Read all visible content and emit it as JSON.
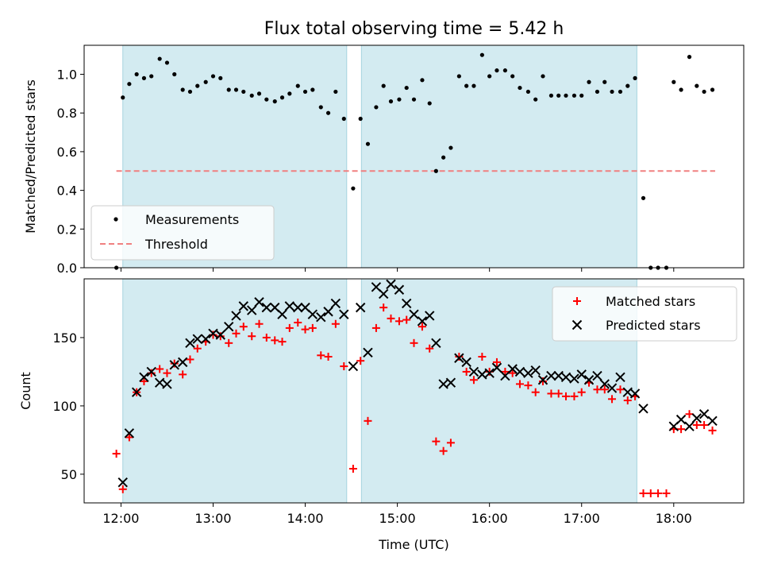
{
  "chart_data": [
    {
      "type": "scatter",
      "title": "Flux total observing time = 5.42 h",
      "xlabel": "",
      "ylabel": "Matched/Predicted stars",
      "xlim": [
        11.6,
        18.76
      ],
      "ylim": [
        0.0,
        1.15
      ],
      "yticks": [
        0.0,
        0.2,
        0.4,
        0.6,
        0.8,
        1.0
      ],
      "ytick_labels": [
        "0.0",
        "0.2",
        "0.4",
        "0.6",
        "0.8",
        "1.0"
      ],
      "xticks": [
        12,
        13,
        14,
        15,
        16,
        17,
        18
      ],
      "legend_position": "lower-left",
      "shaded_intervals": [
        [
          12.02,
          14.45
        ],
        [
          14.61,
          17.6
        ]
      ],
      "colors": {
        "shade": "#d3ebf1",
        "shade_edge": "#a6d4df",
        "threshold": "#f08080",
        "points": "#000000"
      },
      "series": [
        {
          "name": "Measurements",
          "marker": "dot",
          "x": [
            11.95,
            12.02,
            12.09,
            12.17,
            12.25,
            12.33,
            12.42,
            12.5,
            12.58,
            12.67,
            12.75,
            12.83,
            12.92,
            13.0,
            13.08,
            13.17,
            13.25,
            13.33,
            13.42,
            13.5,
            13.58,
            13.67,
            13.75,
            13.83,
            13.92,
            14.0,
            14.08,
            14.17,
            14.25,
            14.33,
            14.42,
            14.52,
            14.6,
            14.68,
            14.77,
            14.85,
            14.93,
            15.02,
            15.1,
            15.18,
            15.27,
            15.35,
            15.42,
            15.5,
            15.58,
            15.67,
            15.75,
            15.83,
            15.92,
            16.0,
            16.08,
            16.17,
            16.25,
            16.33,
            16.42,
            16.5,
            16.58,
            16.67,
            16.75,
            16.83,
            16.92,
            17.0,
            17.08,
            17.17,
            17.25,
            17.33,
            17.42,
            17.5,
            17.58,
            17.67,
            17.75,
            17.83,
            17.92,
            18.0,
            18.08,
            18.17,
            18.25,
            18.33,
            18.42
          ],
          "values": [
            0.0,
            0.88,
            0.95,
            1.0,
            0.98,
            0.99,
            1.08,
            1.06,
            1.0,
            0.92,
            0.91,
            0.94,
            0.96,
            0.99,
            0.98,
            0.92,
            0.92,
            0.91,
            0.89,
            0.9,
            0.87,
            0.86,
            0.88,
            0.9,
            0.94,
            0.91,
            0.92,
            0.83,
            0.8,
            0.91,
            0.77,
            0.41,
            0.77,
            0.64,
            0.83,
            0.94,
            0.86,
            0.87,
            0.93,
            0.87,
            0.97,
            0.85,
            0.5,
            0.57,
            0.62,
            0.99,
            0.94,
            0.94,
            1.1,
            0.99,
            1.02,
            1.02,
            0.99,
            0.93,
            0.91,
            0.87,
            0.99,
            0.89,
            0.89,
            0.89,
            0.89,
            0.89,
            0.96,
            0.91,
            0.96,
            0.91,
            0.91,
            0.94,
            0.98,
            0.36,
            0.0,
            0.0,
            0.0,
            0.96,
            0.92,
            1.09,
            0.94,
            0.91,
            0.92
          ]
        },
        {
          "name": "Threshold",
          "marker": "dashed-line",
          "x": [
            11.95,
            18.45
          ],
          "values": [
            0.5,
            0.5
          ]
        }
      ]
    },
    {
      "type": "scatter",
      "title": "",
      "xlabel": "Time (UTC)",
      "ylabel": "Count",
      "xlim": [
        11.6,
        18.76
      ],
      "ylim": [
        29,
        193
      ],
      "yticks": [
        50,
        100,
        150
      ],
      "ytick_labels": [
        "50",
        "100",
        "150"
      ],
      "xticks": [
        12,
        13,
        14,
        15,
        16,
        17,
        18
      ],
      "xtick_labels": [
        "12:00",
        "13:00",
        "14:00",
        "15:00",
        "16:00",
        "17:00",
        "18:00"
      ],
      "legend_position": "top-right",
      "shaded_intervals": [
        [
          12.02,
          14.45
        ],
        [
          14.61,
          17.6
        ]
      ],
      "colors": {
        "shade": "#d3ebf1",
        "shade_edge": "#a6d4df",
        "matched": "#ff0000",
        "predicted": "#000000"
      },
      "series": [
        {
          "name": "Matched stars",
          "marker": "plus",
          "x": [
            11.95,
            12.02,
            12.09,
            12.17,
            12.25,
            12.33,
            12.42,
            12.5,
            12.58,
            12.67,
            12.75,
            12.83,
            12.92,
            13.0,
            13.08,
            13.17,
            13.25,
            13.33,
            13.42,
            13.5,
            13.58,
            13.67,
            13.75,
            13.83,
            13.92,
            14.0,
            14.08,
            14.17,
            14.25,
            14.33,
            14.42,
            14.52,
            14.6,
            14.68,
            14.77,
            14.85,
            14.93,
            15.02,
            15.1,
            15.18,
            15.27,
            15.35,
            15.42,
            15.5,
            15.58,
            15.67,
            15.75,
            15.83,
            15.92,
            16.0,
            16.08,
            16.17,
            16.25,
            16.33,
            16.42,
            16.5,
            16.58,
            16.67,
            16.75,
            16.83,
            16.92,
            17.0,
            17.08,
            17.17,
            17.25,
            17.33,
            17.42,
            17.5,
            17.58,
            17.67,
            17.75,
            17.83,
            17.92,
            18.0,
            18.08,
            18.17,
            18.25,
            18.33,
            18.42
          ],
          "values": [
            65,
            39,
            77,
            110,
            118,
            124,
            127,
            124,
            131,
            123,
            134,
            142,
            147,
            152,
            151,
            146,
            153,
            158,
            151,
            160,
            150,
            148,
            147,
            157,
            161,
            156,
            157,
            137,
            136,
            160,
            129,
            54,
            133,
            89,
            157,
            172,
            164,
            162,
            163,
            146,
            158,
            142,
            74,
            67,
            73,
            136,
            125,
            119,
            136,
            125,
            132,
            125,
            124,
            116,
            115,
            110,
            118,
            109,
            109,
            107,
            107,
            110,
            117,
            112,
            112,
            105,
            112,
            104,
            107,
            36,
            36,
            36,
            36,
            83,
            83,
            94,
            86,
            86,
            82
          ]
        },
        {
          "name": "Predicted stars",
          "marker": "x",
          "x": [
            12.02,
            12.09,
            12.17,
            12.25,
            12.33,
            12.42,
            12.5,
            12.58,
            12.67,
            12.75,
            12.83,
            12.92,
            13.0,
            13.08,
            13.17,
            13.25,
            13.33,
            13.42,
            13.5,
            13.58,
            13.67,
            13.75,
            13.83,
            13.92,
            14.0,
            14.08,
            14.17,
            14.25,
            14.33,
            14.42,
            14.52,
            14.6,
            14.68,
            14.77,
            14.85,
            14.93,
            15.02,
            15.1,
            15.18,
            15.27,
            15.35,
            15.42,
            15.5,
            15.58,
            15.67,
            15.75,
            15.83,
            15.92,
            16.0,
            16.08,
            16.17,
            16.25,
            16.33,
            16.42,
            16.5,
            16.58,
            16.67,
            16.75,
            16.83,
            16.92,
            17.0,
            17.08,
            17.17,
            17.25,
            17.33,
            17.42,
            17.5,
            17.58,
            17.67,
            18.0,
            18.08,
            18.17,
            18.25,
            18.33,
            18.42
          ],
          "values": [
            44,
            80,
            110,
            121,
            125,
            117,
            116,
            130,
            132,
            146,
            149,
            149,
            153,
            152,
            158,
            166,
            173,
            170,
            176,
            172,
            172,
            167,
            173,
            172,
            172,
            167,
            165,
            169,
            175,
            167,
            129,
            172,
            139,
            187,
            182,
            189,
            185,
            175,
            167,
            162,
            166,
            146,
            116,
            117,
            135,
            132,
            125,
            123,
            124,
            128,
            122,
            127,
            125,
            124,
            126,
            119,
            122,
            122,
            121,
            120,
            123,
            119,
            122,
            116,
            113,
            121,
            110,
            109,
            98,
            85,
            90,
            85,
            91,
            94,
            89
          ]
        }
      ]
    }
  ]
}
